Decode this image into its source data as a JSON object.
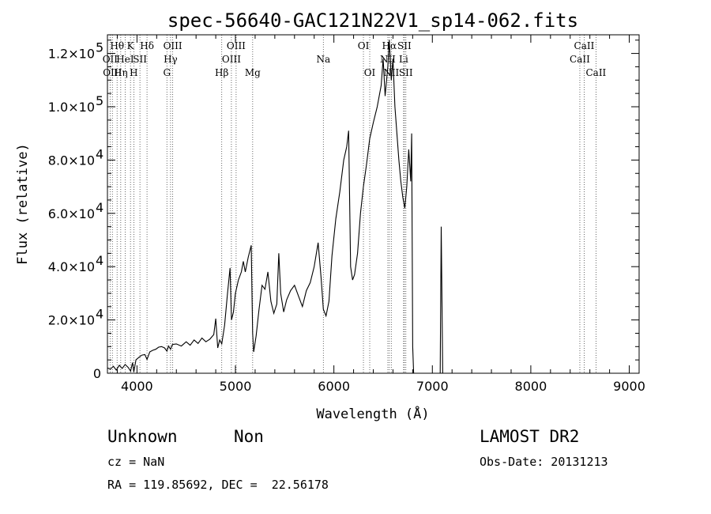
{
  "chart_data": {
    "type": "line",
    "title": "spec-56640-GAC121N22V1_sp14-062.fits",
    "xlabel": "Wavelength (Å)",
    "ylabel": "Flux (relative)",
    "xlim": [
      3700,
      9100
    ],
    "ylim": [
      0,
      127000
    ],
    "xticks": [
      4000,
      5000,
      6000,
      7000,
      8000,
      9000
    ],
    "yticks": [
      {
        "value": 0,
        "mant": "0",
        "exp": ""
      },
      {
        "value": 20000,
        "mant": "2.0×10",
        "exp": "4"
      },
      {
        "value": 40000,
        "mant": "4.0×10",
        "exp": "4"
      },
      {
        "value": 60000,
        "mant": "6.0×10",
        "exp": "4"
      },
      {
        "value": 80000,
        "mant": "8.0×10",
        "exp": "4"
      },
      {
        "value": 100000,
        "mant": "1.0×10",
        "exp": "5"
      },
      {
        "value": 120000,
        "mant": "1.2×10",
        "exp": "5"
      }
    ],
    "spectral_lines": [
      {
        "wl": 3727,
        "label": "OII",
        "row": 1
      },
      {
        "wl": 3750,
        "label": "OIII",
        "row": 2
      },
      {
        "wl": 3798,
        "label": "Hθ",
        "row": 0
      },
      {
        "wl": 3835,
        "label": "Hη",
        "row": 2
      },
      {
        "wl": 3880,
        "label": "HeI",
        "row": 1
      },
      {
        "wl": 3934,
        "label": "K",
        "row": 0
      },
      {
        "wl": 3968,
        "label": "H",
        "row": 2
      },
      {
        "wl": 4030,
        "label": "SII",
        "row": 1
      },
      {
        "wl": 4102,
        "label": "Hδ",
        "row": 0
      },
      {
        "wl": 4304,
        "label": "G",
        "row": 2
      },
      {
        "wl": 4341,
        "label": "Hγ",
        "row": 1
      },
      {
        "wl": 4363,
        "label": "OIII",
        "row": 0
      },
      {
        "wl": 4861,
        "label": "Hβ",
        "row": 2
      },
      {
        "wl": 4959,
        "label": "OIII",
        "row": 1
      },
      {
        "wl": 5007,
        "label": "OIII",
        "row": 0
      },
      {
        "wl": 5175,
        "label": "Mg",
        "row": 2
      },
      {
        "wl": 5893,
        "label": "Na",
        "row": 1
      },
      {
        "wl": 6300,
        "label": "OI",
        "row": 0
      },
      {
        "wl": 6364,
        "label": "OI",
        "row": 2
      },
      {
        "wl": 6548,
        "label": "NII",
        "row": 1
      },
      {
        "wl": 6563,
        "label": "Hα",
        "row": 0
      },
      {
        "wl": 6583,
        "label": "NII",
        "row": 2
      },
      {
        "wl": 6708,
        "label": "Li",
        "row": 1
      },
      {
        "wl": 6716,
        "label": "SII",
        "row": 0
      },
      {
        "wl": 6731,
        "label": "SII",
        "row": 2
      },
      {
        "wl": 8498,
        "label": "CaII",
        "row": 1
      },
      {
        "wl": 8542,
        "label": "CaII",
        "row": 0
      },
      {
        "wl": 8662,
        "label": "CaII",
        "row": 2
      }
    ],
    "spectrum": [
      [
        3700,
        2000
      ],
      [
        3730,
        1500
      ],
      [
        3760,
        2600
      ],
      [
        3790,
        1200
      ],
      [
        3820,
        3000
      ],
      [
        3850,
        1800
      ],
      [
        3880,
        3300
      ],
      [
        3910,
        2200
      ],
      [
        3935,
        800
      ],
      [
        3955,
        4000
      ],
      [
        3968,
        500
      ],
      [
        3990,
        5000
      ],
      [
        4020,
        6000
      ],
      [
        4050,
        6800
      ],
      [
        4080,
        7000
      ],
      [
        4102,
        5200
      ],
      [
        4130,
        8000
      ],
      [
        4160,
        8600
      ],
      [
        4190,
        9000
      ],
      [
        4220,
        9800
      ],
      [
        4250,
        10000
      ],
      [
        4280,
        9500
      ],
      [
        4304,
        8300
      ],
      [
        4320,
        10200
      ],
      [
        4341,
        9000
      ],
      [
        4360,
        10800
      ],
      [
        4400,
        11000
      ],
      [
        4450,
        10200
      ],
      [
        4500,
        11800
      ],
      [
        4540,
        10500
      ],
      [
        4580,
        12500
      ],
      [
        4620,
        11200
      ],
      [
        4660,
        13200
      ],
      [
        4700,
        11800
      ],
      [
        4740,
        12800
      ],
      [
        4780,
        14500
      ],
      [
        4800,
        20500
      ],
      [
        4820,
        9500
      ],
      [
        4840,
        12500
      ],
      [
        4861,
        11000
      ],
      [
        4890,
        18000
      ],
      [
        4920,
        30000
      ],
      [
        4945,
        39500
      ],
      [
        4960,
        20000
      ],
      [
        4980,
        23000
      ],
      [
        5000,
        30000
      ],
      [
        5030,
        35000
      ],
      [
        5060,
        38000
      ],
      [
        5080,
        42000
      ],
      [
        5100,
        38000
      ],
      [
        5130,
        43500
      ],
      [
        5160,
        48000
      ],
      [
        5175,
        15000
      ],
      [
        5185,
        8000
      ],
      [
        5210,
        14000
      ],
      [
        5240,
        24000
      ],
      [
        5270,
        33000
      ],
      [
        5300,
        31500
      ],
      [
        5330,
        38000
      ],
      [
        5360,
        27000
      ],
      [
        5390,
        22500
      ],
      [
        5420,
        26000
      ],
      [
        5440,
        45000
      ],
      [
        5460,
        30000
      ],
      [
        5490,
        23000
      ],
      [
        5520,
        27500
      ],
      [
        5560,
        31000
      ],
      [
        5600,
        33000
      ],
      [
        5640,
        29000
      ],
      [
        5680,
        25000
      ],
      [
        5720,
        31000
      ],
      [
        5760,
        34000
      ],
      [
        5800,
        40000
      ],
      [
        5840,
        49000
      ],
      [
        5870,
        36000
      ],
      [
        5893,
        24000
      ],
      [
        5920,
        21500
      ],
      [
        5950,
        27000
      ],
      [
        5980,
        44000
      ],
      [
        6020,
        58000
      ],
      [
        6060,
        68000
      ],
      [
        6100,
        80000
      ],
      [
        6130,
        85000
      ],
      [
        6150,
        91000
      ],
      [
        6170,
        40000
      ],
      [
        6190,
        35000
      ],
      [
        6210,
        37000
      ],
      [
        6240,
        45000
      ],
      [
        6270,
        60000
      ],
      [
        6300,
        70000
      ],
      [
        6330,
        78000
      ],
      [
        6364,
        88000
      ],
      [
        6400,
        94000
      ],
      [
        6440,
        100000
      ],
      [
        6480,
        108000
      ],
      [
        6500,
        118000
      ],
      [
        6520,
        104000
      ],
      [
        6548,
        115000
      ],
      [
        6563,
        125000
      ],
      [
        6583,
        110000
      ],
      [
        6600,
        118000
      ],
      [
        6620,
        100000
      ],
      [
        6640,
        90000
      ],
      [
        6660,
        80000
      ],
      [
        6680,
        72000
      ],
      [
        6700,
        66000
      ],
      [
        6720,
        62000
      ],
      [
        6740,
        70000
      ],
      [
        6760,
        84000
      ],
      [
        6780,
        72000
      ],
      [
        6790,
        90000
      ],
      [
        6800,
        10000
      ],
      [
        6810,
        0
      ],
      [
        7000,
        0
      ],
      [
        7080,
        0
      ],
      [
        7090,
        55000
      ],
      [
        7105,
        0
      ],
      [
        9100,
        0
      ]
    ]
  },
  "info": {
    "object_class": "Unknown",
    "object_subclass": "Non",
    "cz": "cz = NaN",
    "coords": "RA = 119.85692, DEC =  22.56178",
    "survey": "LAMOST DR2",
    "obs_date": "Obs-Date: 20131213"
  }
}
